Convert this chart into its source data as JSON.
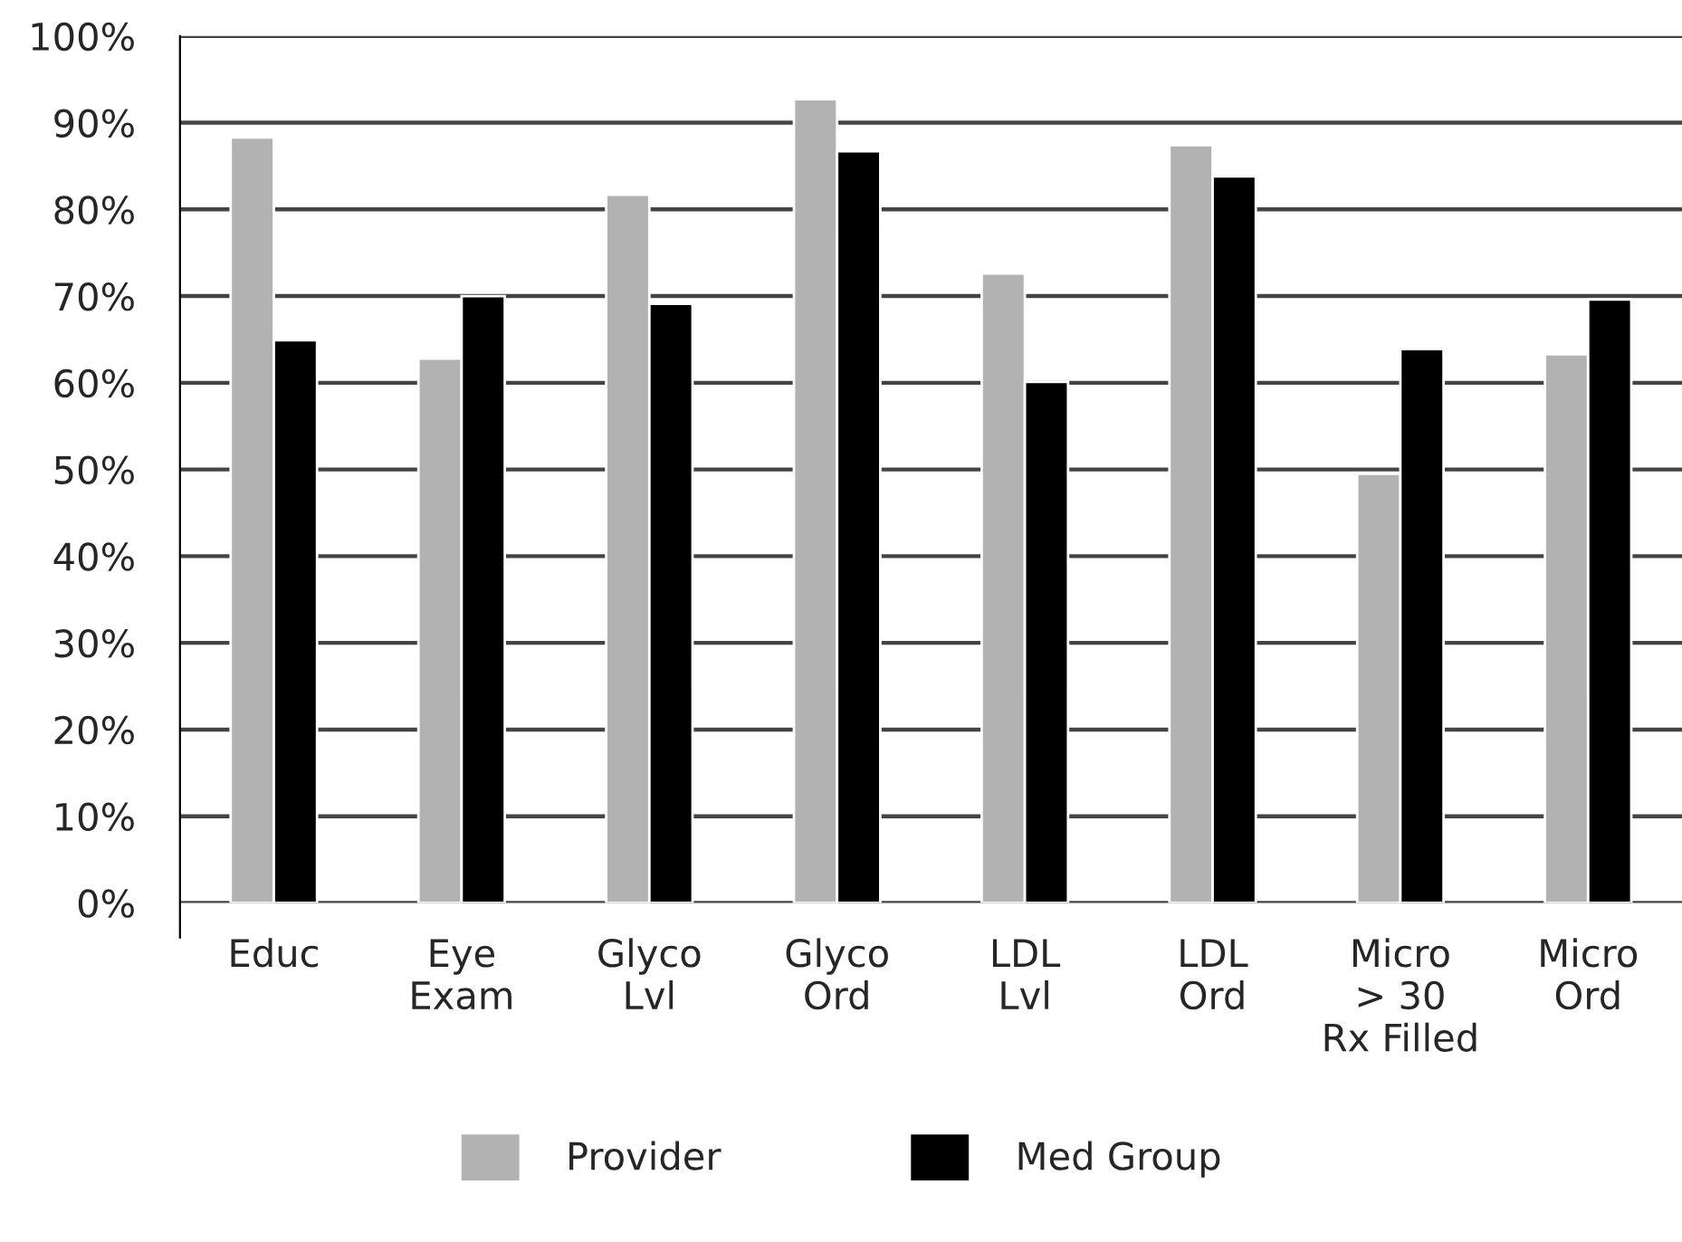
{
  "chart_data": {
    "type": "bar",
    "categories": [
      "Educ",
      "Eye\nExam",
      "Glyco\nLvl",
      "Glyco\nOrd",
      "LDL\nLvl",
      "LDL\nOrd",
      "Micro\n> 30\nRx Filled",
      "Micro\nOrd"
    ],
    "series": [
      {
        "name": "Provider",
        "color": "#b2b2b2",
        "values": [
          88.3,
          62.8,
          81.7,
          92.7,
          72.6,
          87.4,
          49.5,
          63.3
        ]
      },
      {
        "name": "Med Group",
        "color": "#000000",
        "values": [
          64.9,
          70.0,
          69.1,
          86.7,
          60.1,
          83.8,
          63.9,
          69.6
        ]
      }
    ],
    "ylim": [
      0,
      100
    ],
    "yticks": [
      {
        "value": 0,
        "label": "0%"
      },
      {
        "value": 10,
        "label": "10%"
      },
      {
        "value": 20,
        "label": "20%"
      },
      {
        "value": 30,
        "label": "30%"
      },
      {
        "value": 40,
        "label": "40%"
      },
      {
        "value": 50,
        "label": "50%"
      },
      {
        "value": 60,
        "label": "60%"
      },
      {
        "value": 70,
        "label": "70%"
      },
      {
        "value": 80,
        "label": "80%"
      },
      {
        "value": 90,
        "label": "90%"
      },
      {
        "value": 100,
        "label": "100%"
      }
    ],
    "grid": "y",
    "legend": "bottom"
  }
}
